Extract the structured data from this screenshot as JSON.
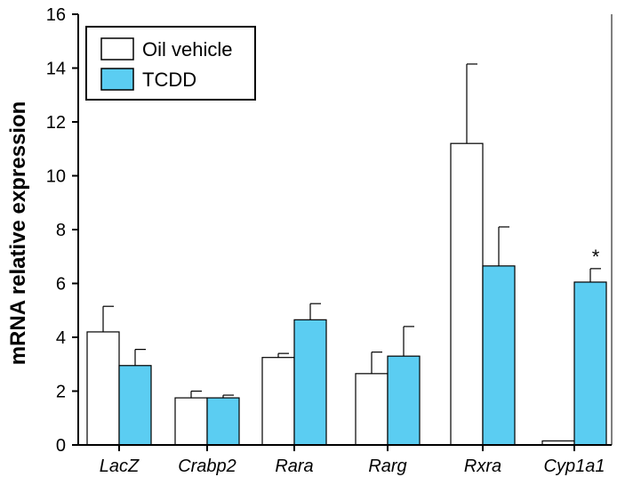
{
  "chart_data": {
    "type": "bar",
    "title": "",
    "xlabel": "",
    "ylabel": "mRNA relative expression",
    "ylim": [
      0,
      16
    ],
    "yticks": [
      "0",
      "2",
      "4",
      "6",
      "8",
      "10",
      "12",
      "14",
      "16"
    ],
    "categories": [
      "LacZ",
      "Crabp2",
      "Rara",
      "Rarg",
      "Rxra",
      "Cyp1a1"
    ],
    "series": [
      {
        "name": "Oil vehicle",
        "color": "#ffffff",
        "values": [
          4.2,
          1.75,
          3.25,
          2.65,
          11.2,
          0.15
        ],
        "errors": [
          0.95,
          0.25,
          0.15,
          0.8,
          2.95,
          0
        ]
      },
      {
        "name": "TCDD",
        "color": "#5bcdf2",
        "values": [
          2.95,
          1.75,
          4.65,
          3.3,
          6.65,
          6.05
        ],
        "errors": [
          0.6,
          0.1,
          0.6,
          1.1,
          1.45,
          0.5
        ]
      }
    ],
    "annotations": [
      {
        "category": "Cyp1a1",
        "series": "TCDD",
        "text": "*"
      }
    ],
    "legend_position": "top-left",
    "grid": false
  }
}
